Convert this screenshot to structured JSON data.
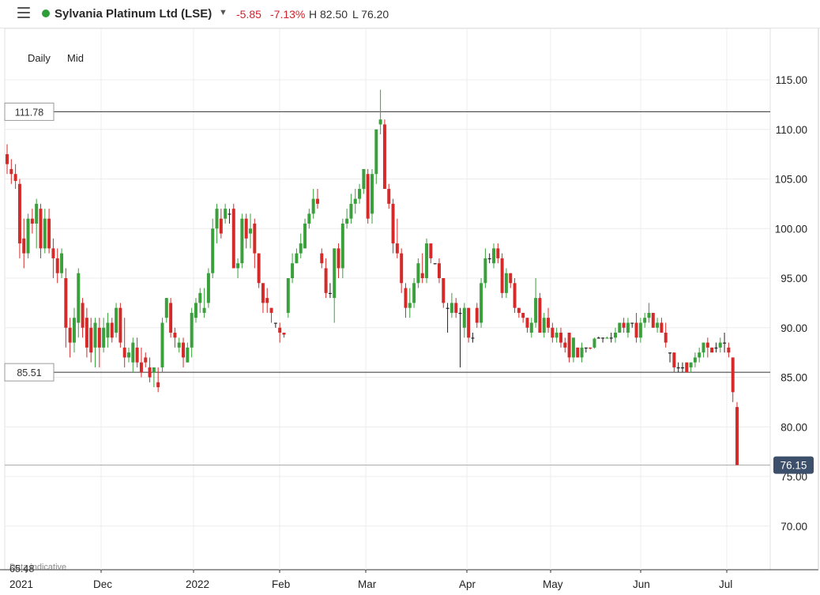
{
  "header": {
    "menu_icon": "hamburger-menu-icon",
    "status_dot_color": "#2e9e3a",
    "instrument": "Sylvania Platinum Ltd (LSE)",
    "dropdown_icon": "caret-down-icon",
    "change": "-5.85",
    "change_pct": "-7.13%",
    "high": "H 82.50",
    "low": "L 76.20",
    "negative_color": "#d0212b"
  },
  "controls": {
    "interval": "Daily",
    "price_type": "Mid"
  },
  "watermark": "Data indicative",
  "colors": {
    "up": "#3aa03c",
    "down": "#d42a2a",
    "neutral": "#222222",
    "last_price_bg": "#3c4f6b"
  },
  "chart_data": {
    "type": "candlestick",
    "y_axis": {
      "ticks": [
        "115.00",
        "110.00",
        "105.00",
        "100.00",
        "95.00",
        "90.00",
        "85.00",
        "80.00",
        "75.00",
        "70.00"
      ],
      "range": [
        65.48,
        117
      ],
      "bottom_label": "65.48"
    },
    "x_axis": {
      "labels": [
        "2021",
        "Dec",
        "2022",
        "Feb",
        "Mar",
        "Apr",
        "May",
        "Jun",
        "Jul"
      ]
    },
    "horizontal_lines": [
      {
        "value": 111.78,
        "label": "111.78"
      },
      {
        "value": 85.51,
        "label": "85.51"
      },
      {
        "value": 76.15,
        "label": "76.15",
        "type": "last_price"
      }
    ],
    "candles": [
      [
        107.5,
        108.5,
        105.5,
        106.5
      ],
      [
        106,
        107,
        104.5,
        105.5
      ],
      [
        105.5,
        106.5,
        104,
        104.8
      ],
      [
        104.5,
        105,
        97,
        98.5
      ],
      [
        99,
        101,
        96,
        97.5
      ],
      [
        97.5,
        101.5,
        97,
        101
      ],
      [
        101,
        102,
        99.5,
        100.5
      ],
      [
        100.5,
        103,
        98,
        102.5
      ],
      [
        102,
        102.5,
        97,
        98
      ],
      [
        98,
        102,
        97.5,
        101
      ],
      [
        101,
        102,
        97.5,
        98
      ],
      [
        98,
        99,
        95,
        97
      ],
      [
        97,
        98,
        94.5,
        95.5
      ],
      [
        95.5,
        98,
        95,
        97.5
      ],
      [
        95,
        96,
        88,
        90
      ],
      [
        90,
        91,
        87,
        88.5
      ],
      [
        88.5,
        92,
        87.5,
        91
      ],
      [
        90.5,
        96,
        89,
        95.5
      ],
      [
        92.5,
        93,
        89,
        90
      ],
      [
        91,
        92,
        87,
        88
      ],
      [
        90,
        91,
        86.5,
        87.5
      ],
      [
        88,
        91,
        86,
        90.5
      ],
      [
        90,
        91,
        86,
        88
      ],
      [
        88,
        91,
        87.5,
        90
      ],
      [
        89,
        91.5,
        88,
        90.5
      ],
      [
        90.5,
        91,
        88.5,
        89
      ],
      [
        89.5,
        92.5,
        89,
        92
      ],
      [
        92,
        92.5,
        88,
        88.5
      ],
      [
        88,
        91,
        86,
        87
      ],
      [
        87,
        88,
        86.5,
        87.5
      ],
      [
        86.5,
        89,
        85.5,
        88.5
      ],
      [
        88,
        89,
        86,
        86.5
      ],
      [
        86.5,
        88,
        85,
        85.5
      ],
      [
        87,
        87.5,
        86,
        86.5
      ],
      [
        86,
        87,
        84.5,
        85
      ],
      [
        85.5,
        86,
        84,
        86
      ],
      [
        84.5,
        86,
        83.5,
        84
      ],
      [
        86,
        91,
        85.5,
        90.5
      ],
      [
        91,
        93,
        90.5,
        93
      ],
      [
        92.5,
        93,
        89,
        89.5
      ],
      [
        89.5,
        90,
        88,
        89
      ],
      [
        88,
        89,
        87.5,
        88.5
      ],
      [
        88.5,
        89,
        86,
        87
      ],
      [
        86.5,
        88.5,
        86.5,
        88
      ],
      [
        88,
        92,
        87,
        91.5
      ],
      [
        91,
        93,
        90.5,
        92.5
      ],
      [
        92.5,
        94,
        91.5,
        93.5
      ],
      [
        91.5,
        94,
        91,
        92
      ],
      [
        92.5,
        96,
        92,
        95.5
      ],
      [
        95.5,
        101,
        95,
        100
      ],
      [
        100,
        102.5,
        98.5,
        102
      ],
      [
        101,
        102,
        99,
        99.5
      ],
      [
        101,
        102.5,
        100.5,
        102
      ],
      [
        101.5,
        102,
        100.5,
        101.5
      ],
      [
        102,
        102.5,
        96,
        96
      ],
      [
        96,
        97,
        95,
        96.5
      ],
      [
        96.5,
        101.5,
        96,
        101
      ],
      [
        101,
        101.5,
        98,
        99
      ],
      [
        99.5,
        101.5,
        98,
        100
      ],
      [
        100.5,
        101,
        96,
        97.5
      ],
      [
        97.5,
        97.5,
        94,
        94.5
      ],
      [
        94.5,
        94.5,
        91.5,
        92.5
      ],
      [
        93,
        94,
        91.5,
        92.5
      ],
      [
        92,
        92,
        90.5,
        91.5
      ],
      [
        90.5,
        90.5,
        90,
        90.5
      ],
      [
        90,
        90.5,
        88.5,
        89.5
      ],
      [
        89.5,
        89.5,
        89,
        89.3
      ],
      [
        91.5,
        95,
        91,
        95
      ],
      [
        95,
        97.5,
        94.5,
        96.5
      ],
      [
        96.5,
        98,
        96.5,
        97.5
      ],
      [
        97.5,
        99.5,
        97,
        98.5
      ],
      [
        98,
        101,
        98,
        100.5
      ],
      [
        100.5,
        102,
        100,
        101.5
      ],
      [
        101.5,
        104,
        101,
        103
      ],
      [
        103,
        104,
        102,
        102.5
      ],
      [
        97.5,
        98,
        96,
        96.5
      ],
      [
        96,
        97,
        93,
        93.5
      ],
      [
        93.5,
        94.5,
        93,
        93.5
      ],
      [
        93,
        98,
        90.5,
        98
      ],
      [
        98,
        98.5,
        95,
        96
      ],
      [
        96,
        101,
        95,
        100.5
      ],
      [
        100.5,
        102,
        100,
        101
      ],
      [
        101,
        103.5,
        100.5,
        102.5
      ],
      [
        102.5,
        104,
        101.5,
        103
      ],
      [
        103,
        104.5,
        102.5,
        104
      ],
      [
        104,
        106,
        103.5,
        106
      ],
      [
        105.5,
        106,
        100.5,
        101
      ],
      [
        101.5,
        106,
        100.5,
        105.5
      ],
      [
        105.5,
        110,
        104.5,
        110
      ],
      [
        110.5,
        114,
        109.5,
        111
      ],
      [
        110.5,
        111,
        104,
        104
      ],
      [
        104,
        104.5,
        102,
        102.5
      ],
      [
        102.5,
        103,
        97.5,
        98.5
      ],
      [
        98.5,
        101,
        97,
        97.5
      ],
      [
        97.5,
        98,
        93.5,
        94.5
      ],
      [
        94,
        94.5,
        91,
        92
      ],
      [
        92,
        94,
        91,
        92.5
      ],
      [
        92.5,
        95,
        92,
        94.5
      ],
      [
        94.5,
        97,
        94,
        96.5
      ],
      [
        95.5,
        97.5,
        94.5,
        95
      ],
      [
        95,
        99,
        94.5,
        98.5
      ],
      [
        98.5,
        98.5,
        96.5,
        97
      ],
      [
        96.5,
        96.5,
        96.4,
        96.5
      ],
      [
        96.5,
        97,
        94.5,
        95
      ],
      [
        95,
        95,
        92,
        92.5
      ],
      [
        92,
        92.5,
        89.5,
        92
      ],
      [
        91.5,
        93.5,
        91,
        92.5
      ],
      [
        92.5,
        93,
        91,
        91.5
      ],
      [
        91.5,
        92,
        86,
        91.5
      ],
      [
        90,
        92.5,
        89,
        92
      ],
      [
        92,
        92,
        88.5,
        89
      ],
      [
        89,
        89.5,
        88.5,
        89
      ],
      [
        92,
        92.5,
        90,
        90.5
      ],
      [
        90.5,
        95,
        90,
        94.5
      ],
      [
        94.5,
        98,
        94,
        97
      ],
      [
        97,
        97.5,
        96.5,
        97
      ],
      [
        96.5,
        98.5,
        96,
        98
      ],
      [
        98,
        98.5,
        96.5,
        97
      ],
      [
        97,
        97.5,
        93,
        93.5
      ],
      [
        93.5,
        96,
        93,
        95.5
      ],
      [
        95.5,
        95.5,
        94,
        94.5
      ],
      [
        94.5,
        95,
        91.5,
        92
      ],
      [
        92,
        92,
        91,
        91.5
      ],
      [
        91.5,
        91.5,
        90.5,
        91
      ],
      [
        91,
        91,
        89.5,
        90
      ],
      [
        89.5,
        91,
        89,
        90.5
      ],
      [
        90.5,
        95,
        90,
        93
      ],
      [
        93,
        93.5,
        89.5,
        89.5
      ],
      [
        89.5,
        91.5,
        89,
        91
      ],
      [
        91,
        92,
        89.5,
        90
      ],
      [
        90,
        90.5,
        88.5,
        89
      ],
      [
        89,
        90,
        88.5,
        89.5
      ],
      [
        89.5,
        90,
        88,
        88.5
      ],
      [
        88.5,
        89,
        87.5,
        88
      ],
      [
        89.5,
        89.5,
        86.5,
        87
      ],
      [
        87,
        89,
        86.5,
        89
      ],
      [
        88,
        88,
        87,
        87
      ],
      [
        87,
        88.5,
        86.5,
        88
      ],
      [
        88,
        88,
        87.5,
        88
      ],
      [
        88,
        88,
        87.8,
        87.9
      ],
      [
        88,
        89,
        87.9,
        88.9
      ],
      [
        89,
        89.1,
        88.9,
        89
      ],
      [
        89,
        89,
        88.5,
        89
      ],
      [
        88.9,
        89.1,
        88.9,
        89
      ],
      [
        89,
        89.5,
        88.5,
        89
      ],
      [
        89,
        90,
        88.5,
        89.5
      ],
      [
        89.5,
        90.5,
        89.5,
        90.5
      ],
      [
        90.5,
        91,
        89.5,
        90
      ],
      [
        89.5,
        91,
        89,
        90.5
      ],
      [
        90.5,
        90.5,
        90,
        90.5
      ],
      [
        90.5,
        91.5,
        88.5,
        89
      ],
      [
        89,
        91,
        88.5,
        90.5
      ],
      [
        90.5,
        91.5,
        90,
        91
      ],
      [
        91,
        92.5,
        90.5,
        91.5
      ],
      [
        91.5,
        91.5,
        90,
        90
      ],
      [
        90,
        91,
        89.5,
        90.5
      ],
      [
        90.5,
        91,
        89.5,
        89.5
      ],
      [
        89.5,
        90.5,
        88,
        88.5
      ],
      [
        87.5,
        87.5,
        86.5,
        87.5
      ],
      [
        87.5,
        87.5,
        85.5,
        86
      ],
      [
        86,
        86.5,
        85.5,
        86
      ],
      [
        86,
        86.5,
        85.5,
        86
      ],
      [
        86.5,
        86.5,
        85.5,
        85.5
      ],
      [
        86,
        86.5,
        85.5,
        86.5
      ],
      [
        86.5,
        87.5,
        86,
        87
      ],
      [
        87,
        88,
        86.5,
        87.5
      ],
      [
        87.5,
        88.5,
        87,
        88.5
      ],
      [
        88.5,
        89,
        87,
        88
      ],
      [
        88,
        88,
        87.5,
        87.5
      ],
      [
        88,
        88.5,
        87.5,
        88
      ],
      [
        88,
        89,
        87.5,
        88.5
      ],
      [
        88.5,
        89.5,
        87.5,
        88.5
      ],
      [
        88,
        88.5,
        87,
        87.5
      ],
      [
        87,
        87,
        82.5,
        83.5
      ],
      [
        82,
        82.5,
        76.2,
        76.15
      ]
    ]
  }
}
